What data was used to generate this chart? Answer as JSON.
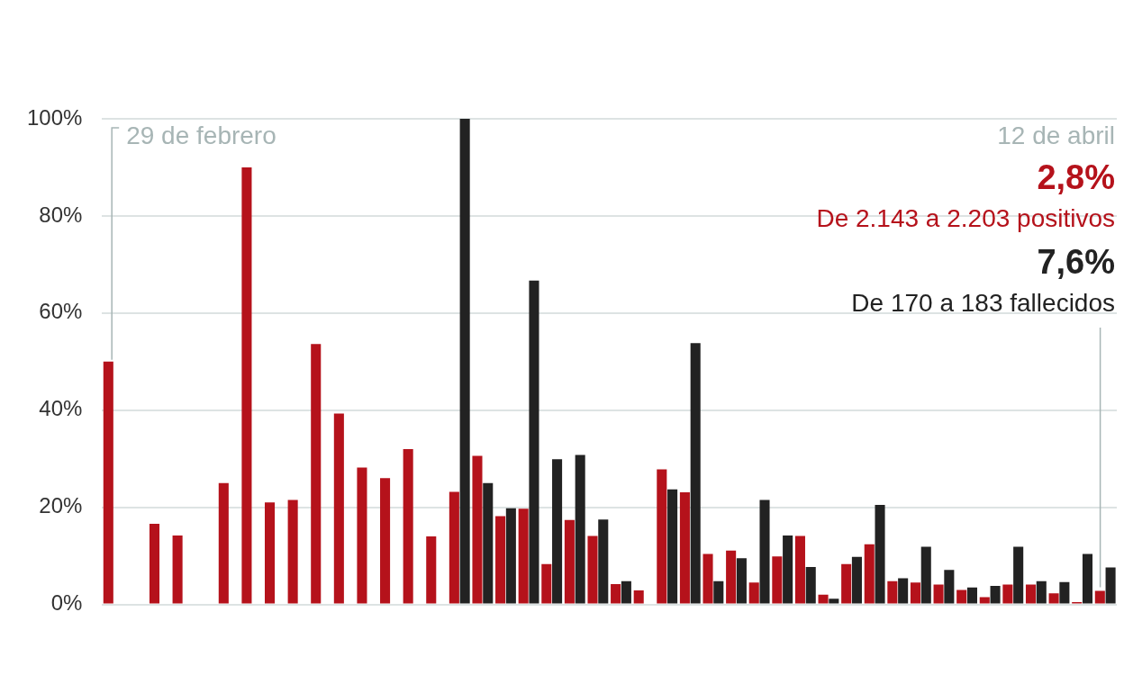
{
  "chart_data": {
    "type": "bar",
    "categories": [
      null,
      null,
      null,
      null,
      null,
      null,
      null,
      null,
      null,
      null,
      null,
      null,
      null,
      null,
      null,
      null,
      null,
      null,
      null,
      null,
      null,
      null,
      null,
      null,
      null,
      null,
      null,
      null,
      null,
      null,
      null,
      null,
      null,
      null,
      null,
      null,
      null,
      null,
      null,
      null,
      null,
      null,
      null,
      null
    ],
    "series": [
      {
        "color": "#b5121b",
        "values": [
          50,
          0,
          16.6,
          14.2,
          0,
          25,
          90,
          21,
          21.5,
          53.6,
          39.3,
          28.2,
          26,
          32,
          14,
          23.2,
          30.6,
          18.2,
          19.7,
          8.3,
          17.4,
          14.1,
          4.2,
          2.9,
          27.8,
          23.1,
          10.4,
          11.1,
          4.5,
          9.9,
          14.1,
          2,
          8.3,
          12.4,
          4.8,
          4.5,
          4.1,
          3,
          1.5,
          4.1,
          4.1,
          2.3,
          0.5,
          2.8
        ]
      },
      {
        "color": "#222222",
        "values": [
          0,
          0,
          0,
          0,
          0,
          0,
          0,
          0,
          0,
          0,
          0,
          0,
          0,
          0,
          0,
          100,
          25,
          19.8,
          66.7,
          29.9,
          30.8,
          17.5,
          4.8,
          0,
          23.7,
          53.8,
          4.8,
          9.5,
          21.5,
          14.2,
          7.7,
          1.2,
          9.8,
          20.5,
          5.4,
          11.9,
          7.1,
          3.5,
          3.8,
          11.9,
          4.8,
          4.6,
          10.4,
          7.6
        ]
      }
    ],
    "ylim": [
      0,
      100
    ],
    "yticks": [
      {
        "value": 0,
        "label": "0%"
      },
      {
        "value": 20,
        "label": "20%"
      },
      {
        "value": 40,
        "label": "40%"
      },
      {
        "value": 60,
        "label": "60%"
      },
      {
        "value": 80,
        "label": "80%"
      },
      {
        "value": 100,
        "label": "100%"
      }
    ],
    "grid": "y",
    "legend": false,
    "annotations": [
      "29 de febrero",
      "12 de abril",
      "2,8%",
      "De 2.143 a 2.203 positivos",
      "7,6%",
      "De 170 a 183 fallecidos"
    ]
  }
}
